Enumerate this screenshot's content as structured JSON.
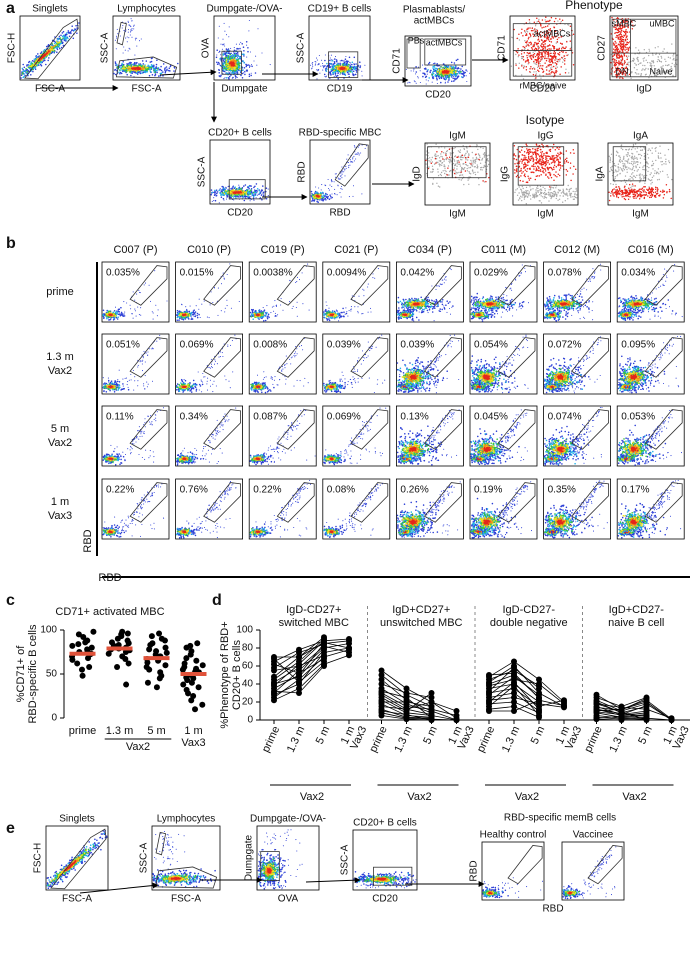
{
  "a": {
    "label": "a",
    "phenotype_title": "Phenotype",
    "isotype_title": "Isotype",
    "plots": [
      {
        "title": "Singlets",
        "x_label": "FSC-A",
        "y_label": "FSC-H"
      },
      {
        "title": "Lymphocytes",
        "x_label": "FSC-A",
        "y_label": "SSC-A"
      },
      {
        "title": "Dumpgate-/OVA-",
        "x_label": "Dumpgate",
        "y_label": "OVA"
      },
      {
        "title": "CD19+ B cells",
        "x_label": "CD19",
        "y_label": "SSC-A"
      },
      {
        "title": [
          "Plasmablasts/",
          "actMBCs"
        ],
        "x_label": "CD20",
        "y_label": "CD71",
        "gates": [
          "PBs",
          "actMBCs"
        ]
      },
      {
        "x_label": "CD20",
        "y_label": "CD71",
        "gates": [
          "actMBCs",
          "rMBC/naive"
        ]
      },
      {
        "x_label": "IgD",
        "y_label": "CD27",
        "gates": [
          "sMBC",
          "uMBC",
          "DN",
          "Naive"
        ]
      },
      {
        "title": "CD20+ B cells",
        "x_label": "CD20",
        "y_label": "SSC-A"
      },
      {
        "title": "RBD-specific MBC",
        "x_label": "RBD",
        "y_label": "RBD"
      },
      {
        "title": "IgM",
        "x_label": "IgM",
        "y_label": "IgD"
      },
      {
        "title": "IgG",
        "x_label": "IgM",
        "y_label": "IgG"
      },
      {
        "title": "IgA",
        "x_label": "IgM",
        "y_label": "IgA"
      }
    ]
  },
  "b": {
    "label": "b",
    "columns": [
      "C007 (P)",
      "C010 (P)",
      "C019 (P)",
      "C021 (P)",
      "C034 (P)",
      "C011 (M)",
      "C012 (M)",
      "C016 (M)"
    ],
    "rows": [
      [
        "prime"
      ],
      [
        "1.3 m",
        "Vax2"
      ],
      [
        "5 m",
        "Vax2"
      ],
      [
        "1 m",
        "Vax3"
      ]
    ],
    "percentages": [
      [
        "0.035%",
        "0.015%",
        "0.0038%",
        "0.0094%",
        "0.042%",
        "0.029%",
        "0.078%",
        "0.034%"
      ],
      [
        "0.051%",
        "0.069%",
        "0.008%",
        "0.039%",
        "0.039%",
        "0.054%",
        "0.072%",
        "0.095%"
      ],
      [
        "0.11%",
        "0.34%",
        "0.087%",
        "0.069%",
        "0.13%",
        "0.045%",
        "0.074%",
        "0.053%"
      ],
      [
        "0.22%",
        "0.76%",
        "0.22%",
        "0.08%",
        "0.26%",
        "0.19%",
        "0.35%",
        "0.17%"
      ]
    ],
    "y_label": "RBD",
    "x_label": "RBD"
  },
  "c": {
    "label": "c",
    "type": "dot",
    "title": "CD71+ activated MBC",
    "y_label": [
      "%CD71+ of",
      "RBD-specific B cells"
    ],
    "categories": [
      "prime",
      "1.3 m",
      "5 m",
      "1 m"
    ],
    "x_group_labels": [
      "Vax2",
      "Vax3"
    ],
    "ylim": [
      0,
      100
    ],
    "yticks": [
      0,
      50,
      100
    ],
    "point_color": "#000000",
    "median_color": "#e0523a",
    "points": [
      [
        98,
        95,
        92,
        88,
        86,
        84,
        82,
        80,
        78,
        76,
        75,
        73,
        72,
        70,
        68,
        66,
        62,
        58,
        55,
        48
      ],
      [
        98,
        96,
        95,
        93,
        90,
        88,
        86,
        85,
        83,
        82,
        80,
        79,
        78,
        77,
        75,
        73,
        70,
        67,
        62,
        58,
        38
      ],
      [
        96,
        93,
        90,
        88,
        85,
        83,
        80,
        78,
        76,
        74,
        72,
        70,
        68,
        67,
        65,
        63,
        60,
        58,
        55,
        52,
        48,
        45,
        40,
        35
      ],
      [
        85,
        82,
        80,
        76,
        72,
        68,
        65,
        62,
        60,
        58,
        56,
        55,
        53,
        52,
        51,
        50,
        49,
        48,
        46,
        45,
        43,
        40,
        38,
        35,
        32,
        28,
        25,
        20,
        15,
        10
      ]
    ],
    "medians": [
      73,
      79,
      68,
      50
    ]
  },
  "d": {
    "label": "d",
    "type": "line",
    "y_label": [
      "%Phenotype of RBD+",
      "CD20+ B cells"
    ],
    "categories": [
      "prime",
      "1.3 m",
      "5 m",
      "1 m"
    ],
    "last_category_suffix": "Vax3",
    "x_group_label": "Vax2",
    "ylim": [
      0,
      100
    ],
    "yticks": [
      0,
      20,
      40,
      60,
      80,
      100
    ],
    "color": "#000000",
    "panels": [
      {
        "title": [
          "IgD-CD27+",
          "switched MBC"
        ],
        "subjects": [
          [
            22,
            35,
            62,
            72
          ],
          [
            25,
            45,
            70,
            78
          ],
          [
            28,
            40,
            75,
            80
          ],
          [
            30,
            55,
            80,
            85
          ],
          [
            35,
            50,
            85,
            88
          ],
          [
            38,
            62,
            88,
            null
          ],
          [
            40,
            48,
            78,
            null
          ],
          [
            42,
            58,
            82,
            75
          ],
          [
            45,
            65,
            90,
            null
          ],
          [
            48,
            70,
            86,
            80
          ],
          [
            55,
            60,
            72,
            null
          ],
          [
            58,
            75,
            84,
            null
          ],
          [
            62,
            52,
            68,
            null
          ],
          [
            65,
            78,
            88,
            90
          ],
          [
            70,
            70,
            92,
            null
          ],
          [
            68,
            42,
            65,
            null
          ],
          [
            32,
            30,
            60,
            null
          ]
        ]
      },
      {
        "title": [
          "IgD+CD27+",
          "unswitched MBC"
        ],
        "subjects": [
          [
            55,
            35,
            20,
            2
          ],
          [
            50,
            28,
            15,
            null
          ],
          [
            45,
            22,
            10,
            0
          ],
          [
            40,
            30,
            25,
            null
          ],
          [
            35,
            18,
            8,
            null
          ],
          [
            30,
            15,
            12,
            5
          ],
          [
            28,
            12,
            6,
            null
          ],
          [
            25,
            10,
            30,
            null
          ],
          [
            22,
            8,
            5,
            0
          ],
          [
            20,
            20,
            15,
            null
          ],
          [
            18,
            5,
            3,
            null
          ],
          [
            15,
            12,
            20,
            10
          ],
          [
            12,
            3,
            2,
            null
          ],
          [
            10,
            6,
            0,
            null
          ],
          [
            8,
            2,
            1,
            0
          ],
          [
            5,
            1,
            0,
            null
          ],
          [
            32,
            25,
            2,
            null
          ]
        ]
      },
      {
        "title": [
          "IgD-CD27-",
          "double negative"
        ],
        "subjects": [
          [
            48,
            65,
            45,
            20
          ],
          [
            45,
            55,
            38,
            null
          ],
          [
            42,
            60,
            30,
            15
          ],
          [
            40,
            50,
            25,
            null
          ],
          [
            38,
            45,
            40,
            18
          ],
          [
            35,
            40,
            20,
            null
          ],
          [
            32,
            58,
            35,
            null
          ],
          [
            30,
            35,
            15,
            22
          ],
          [
            28,
            48,
            28,
            null
          ],
          [
            25,
            30,
            10,
            null
          ],
          [
            22,
            25,
            18,
            14
          ],
          [
            20,
            42,
            12,
            null
          ],
          [
            18,
            20,
            8,
            null
          ],
          [
            15,
            38,
            5,
            null
          ],
          [
            12,
            15,
            3,
            null
          ],
          [
            10,
            10,
            22,
            16
          ],
          [
            50,
            52,
            24,
            null
          ]
        ]
      },
      {
        "title": [
          "IgD+CD27-",
          "naive B cell"
        ],
        "subjects": [
          [
            28,
            12,
            22,
            1
          ],
          [
            25,
            15,
            25,
            null
          ],
          [
            22,
            10,
            18,
            0
          ],
          [
            20,
            8,
            15,
            null
          ],
          [
            18,
            14,
            12,
            2
          ],
          [
            15,
            6,
            10,
            null
          ],
          [
            12,
            5,
            8,
            null
          ],
          [
            10,
            12,
            20,
            0
          ],
          [
            8,
            3,
            5,
            null
          ],
          [
            5,
            2,
            3,
            null
          ],
          [
            3,
            1,
            2,
            0
          ],
          [
            2,
            4,
            6,
            null
          ],
          [
            18,
            9,
            0,
            null
          ],
          [
            12,
            7,
            4,
            null
          ],
          [
            1,
            0,
            1,
            null
          ],
          [
            14,
            11,
            24,
            null
          ],
          [
            9,
            6,
            16,
            null
          ]
        ]
      }
    ]
  },
  "e": {
    "label": "e",
    "header": "RBD-specific memB cells",
    "rbd_x_label": "RBD",
    "plots": [
      {
        "title": "Singlets",
        "x_label": "FSC-A",
        "y_label": "FSC-H"
      },
      {
        "title": "Lymphocytes",
        "x_label": "FSC-A",
        "y_label": "SSC-A"
      },
      {
        "title": "Dumpgate-/OVA-",
        "x_label": "OVA",
        "y_label": "Dumpgate"
      },
      {
        "title": "CD20+ B cells",
        "x_label": "CD20",
        "y_label": "SSC-A"
      },
      {
        "title": "Healthy control",
        "y_label": "RBD"
      },
      {
        "title": "Vaccinee"
      }
    ]
  }
}
